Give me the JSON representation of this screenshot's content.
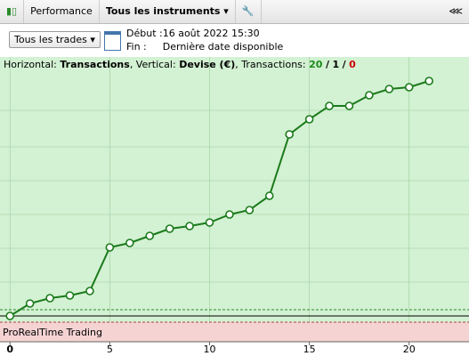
{
  "toolbar": {
    "tab": "Performance",
    "instruments": "Tous les instruments"
  },
  "filters": {
    "trades": "Tous les trades",
    "start_label": "Début :",
    "start": "16 août 2022 15:30",
    "end_label": "Fin :",
    "end": "Dernière date disponible"
  },
  "chart_header": {
    "h_label": "Horizontal:",
    "h_value": "Transactions",
    "v_label": ", Vertical:",
    "v_value": "Devise (€)",
    "t_label": ", Transactions:",
    "wins": "20",
    "sep1": "/",
    "neutral": "1",
    "sep2": "/",
    "losses": "0"
  },
  "footer_label": "ProRealTime Trading",
  "chart_data": {
    "type": "line",
    "x": [
      0,
      1,
      2,
      3,
      4,
      5,
      6,
      7,
      8,
      9,
      10,
      11,
      12,
      13,
      14,
      15,
      16,
      17,
      18,
      19,
      20,
      21
    ],
    "values": [
      0,
      14,
      20,
      23,
      28,
      77,
      82,
      90,
      98,
      101,
      105,
      114,
      119,
      135,
      204,
      221,
      236,
      236,
      248,
      255,
      257,
      264
    ],
    "color": "#1a7a1a",
    "xlim": [
      -0.5,
      23
    ],
    "ylim": [
      -29,
      291
    ],
    "xticks": [
      0,
      5,
      10,
      15,
      20
    ],
    "grid": true
  }
}
